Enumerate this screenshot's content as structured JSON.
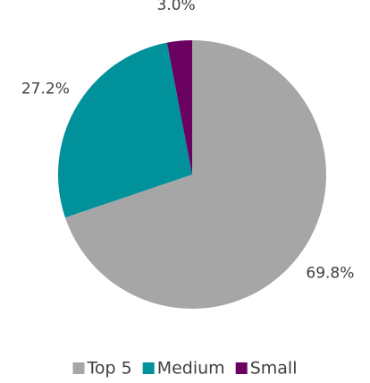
{
  "chart_data": {
    "type": "pie",
    "categories": [
      "Top 5",
      "Medium",
      "Small"
    ],
    "values": [
      69.8,
      27.2,
      3.0
    ],
    "value_labels": [
      "69.8%",
      "27.2%",
      "3.0%"
    ],
    "colors": [
      "#a6a6a6",
      "#00919b",
      "#6a0060"
    ],
    "legend": "bottom"
  }
}
